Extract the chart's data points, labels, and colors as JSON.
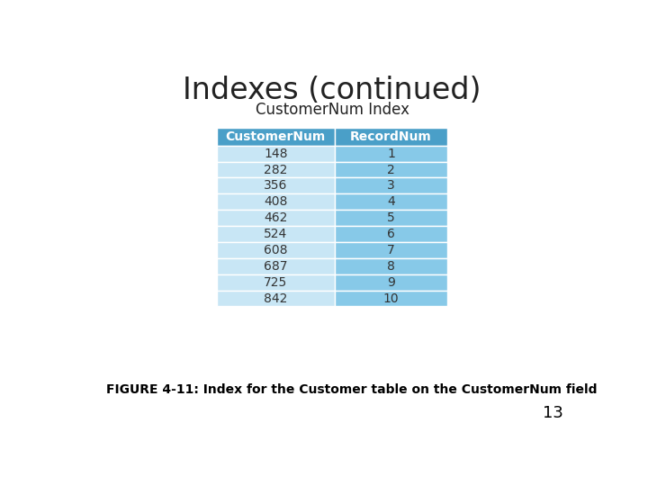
{
  "title": "Indexes (continued)",
  "table_title": "CustomerNum Index",
  "col_headers": [
    "CustomerNum",
    "RecordNum"
  ],
  "rows": [
    [
      "148",
      "1"
    ],
    [
      "282",
      "2"
    ],
    [
      "356",
      "3"
    ],
    [
      "408",
      "4"
    ],
    [
      "462",
      "5"
    ],
    [
      "524",
      "6"
    ],
    [
      "608",
      "7"
    ],
    [
      "687",
      "8"
    ],
    [
      "725",
      "9"
    ],
    [
      "842",
      "10"
    ]
  ],
  "header_color": "#4a9fc8",
  "row_color_col1": "#c8e6f5",
  "row_color_col2": "#87c9e8",
  "caption": "FIGURE 4-11: Index for the Customer table on the CustomerNum field",
  "page_number": "13",
  "bg_color": "#ffffff",
  "title_fontsize": 24,
  "table_title_fontsize": 12,
  "header_fontsize": 10,
  "cell_fontsize": 10,
  "caption_fontsize": 10
}
